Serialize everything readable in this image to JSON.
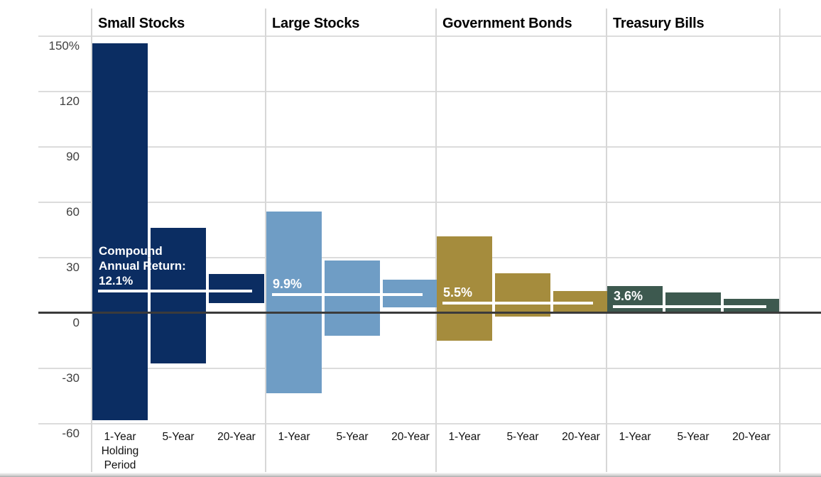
{
  "chart_data": {
    "type": "bar",
    "subtype": "floating-range-columns-by-holding-period",
    "title": "",
    "xlabel": "",
    "ylabel": "",
    "ylim": [
      -60,
      150
    ],
    "grid": true,
    "legend": false,
    "y_ticks": [
      {
        "label": "150%",
        "value": 150
      },
      {
        "label": "120",
        "value": 120
      },
      {
        "label": "90",
        "value": 90
      },
      {
        "label": "60",
        "value": 60
      },
      {
        "label": "30",
        "value": 30
      },
      {
        "label": "0",
        "value": 0
      },
      {
        "label": "-30",
        "value": -30
      },
      {
        "label": "-60",
        "value": -60
      }
    ],
    "groups": [
      {
        "name": "Small Stocks",
        "color": "#0b2d62",
        "compound_annual_return_pct": 12.1,
        "cagr_label_lines": [
          "Compound",
          "Annual Return:",
          "12.1%"
        ],
        "bars": [
          {
            "period": "1-Year",
            "label_lines": [
              "1-Year",
              "Holding",
              "Period"
            ],
            "high": 146.0,
            "low": -58.0
          },
          {
            "period": "5-Year",
            "label_lines": [
              "5-Year"
            ],
            "high": 46.0,
            "low": -27.5
          },
          {
            "period": "20-Year",
            "label_lines": [
              "20-Year"
            ],
            "high": 21.0,
            "low": 5.5
          }
        ]
      },
      {
        "name": "Large Stocks",
        "color": "#6f9dc5",
        "compound_annual_return_pct": 9.9,
        "cagr_label_lines": [
          "9.9%"
        ],
        "bars": [
          {
            "period": "1-Year",
            "label_lines": [
              "1-Year"
            ],
            "high": 55.0,
            "low": -43.5
          },
          {
            "period": "5-Year",
            "label_lines": [
              "5-Year"
            ],
            "high": 28.6,
            "low": -12.5
          },
          {
            "period": "20-Year",
            "label_lines": [
              "20-Year"
            ],
            "high": 17.9,
            "low": 3.1
          }
        ]
      },
      {
        "name": "Government Bonds",
        "color": "#a58c3d",
        "compound_annual_return_pct": 5.5,
        "cagr_label_lines": [
          "5.5%"
        ],
        "bars": [
          {
            "period": "1-Year",
            "label_lines": [
              "1-Year"
            ],
            "high": 41.5,
            "low": -15.0
          },
          {
            "period": "5-Year",
            "label_lines": [
              "5-Year"
            ],
            "high": 21.6,
            "low": -2.1
          },
          {
            "period": "20-Year",
            "label_lines": [
              "20-Year"
            ],
            "high": 12.1,
            "low": 0.7
          }
        ]
      },
      {
        "name": "Treasury Bills",
        "color": "#3d594f",
        "compound_annual_return_pct": 3.6,
        "cagr_label_lines": [
          "3.6%"
        ],
        "bars": [
          {
            "period": "1-Year",
            "label_lines": [
              "1-Year"
            ],
            "high": 14.7,
            "low": 0.0
          },
          {
            "period": "5-Year",
            "label_lines": [
              "5-Year"
            ],
            "high": 11.1,
            "low": 0.1
          },
          {
            "period": "20-Year",
            "label_lines": [
              "20-Year"
            ],
            "high": 7.7,
            "low": 0.4
          }
        ]
      }
    ],
    "annotation_colors": {
      "compound_return_line": "#ffffff",
      "compound_return_text": "#ffffff",
      "zero_axis_line": "#3b3b3b",
      "gridline": "#dcdcdc"
    }
  }
}
